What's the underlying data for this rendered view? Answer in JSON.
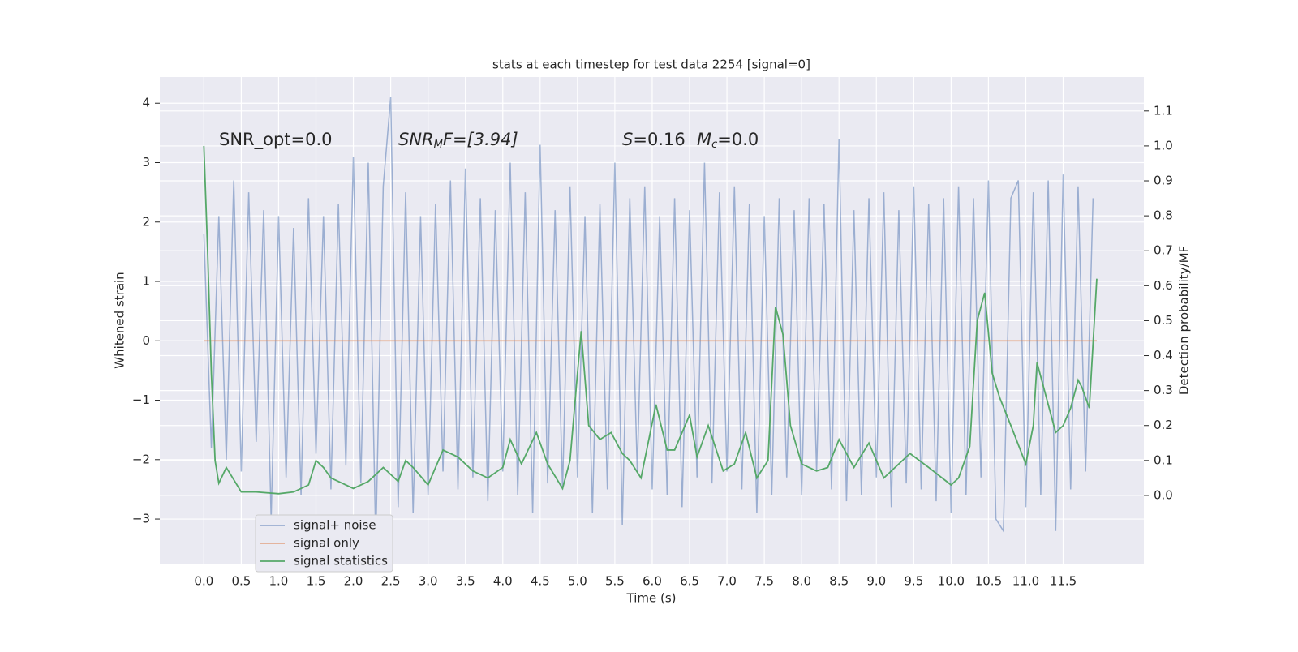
{
  "chart_data": {
    "type": "line",
    "title": "stats at each timestep for test data 2254 [signal=0]",
    "xlabel": "Time (s)",
    "ylabel": "Whitened strain",
    "y2label": "Detection probability/MF",
    "grid": true,
    "legend_loc": "lower left",
    "xlim": [
      -0.59,
      12.58
    ],
    "ylim": [
      -3.75,
      4.44
    ],
    "y2lim": [
      -0.195,
      1.197
    ],
    "xticks": [
      {
        "value": 0,
        "label": "0.0"
      },
      {
        "value": 0.5,
        "label": "0.5"
      },
      {
        "value": 1,
        "label": "1.0"
      },
      {
        "value": 1.5,
        "label": "1.5"
      },
      {
        "value": 2,
        "label": "2.0"
      },
      {
        "value": 2.5,
        "label": "2.5"
      },
      {
        "value": 3,
        "label": "3.0"
      },
      {
        "value": 3.5,
        "label": "3.5"
      },
      {
        "value": 4,
        "label": "4.0"
      },
      {
        "value": 4.5,
        "label": "4.5"
      },
      {
        "value": 5,
        "label": "5.0"
      },
      {
        "value": 5.5,
        "label": "5.5"
      },
      {
        "value": 6,
        "label": "6.0"
      },
      {
        "value": 6.5,
        "label": "6.5"
      },
      {
        "value": 7,
        "label": "7.0"
      },
      {
        "value": 7.5,
        "label": "7.5"
      },
      {
        "value": 8,
        "label": "8.0"
      },
      {
        "value": 8.5,
        "label": "8.5"
      },
      {
        "value": 9,
        "label": "9.0"
      },
      {
        "value": 9.5,
        "label": "9.5"
      },
      {
        "value": 10,
        "label": "10.0"
      },
      {
        "value": 10.5,
        "label": "10.5"
      },
      {
        "value": 11,
        "label": "11.0"
      },
      {
        "value": 11.5,
        "label": "11.5"
      }
    ],
    "yticks": [
      {
        "value": -3,
        "label": "−3"
      },
      {
        "value": -2,
        "label": "−2"
      },
      {
        "value": -1,
        "label": "−1"
      },
      0,
      1,
      2,
      3,
      4
    ],
    "y2ticks": [
      {
        "value": 0,
        "label": "0.0"
      },
      {
        "value": 0.1,
        "label": "0.1"
      },
      {
        "value": 0.2,
        "label": "0.2"
      },
      {
        "value": 0.3,
        "label": "0.3"
      },
      {
        "value": 0.4,
        "label": "0.4"
      },
      {
        "value": 0.5,
        "label": "0.5"
      },
      {
        "value": 0.6,
        "label": "0.6"
      },
      {
        "value": 0.7,
        "label": "0.7"
      },
      {
        "value": 0.8,
        "label": "0.8"
      },
      {
        "value": 0.9,
        "label": "0.9"
      },
      {
        "value": 1,
        "label": "1.0"
      },
      {
        "value": 1.1,
        "label": "1.1"
      }
    ],
    "annotations": [
      {
        "text": "SNR_opt=0.0"
      },
      {
        "base": "SNR",
        "sub": "M",
        "tail": "F=[3.94]"
      },
      {
        "base": "S",
        "tail": "=0.16"
      },
      {
        "base": "M",
        "sub": "c",
        "tail": "=0.0"
      }
    ],
    "series": [
      {
        "name": "signal+ noise",
        "color": "#4c72b0",
        "x": [
          0,
          0.1,
          0.2,
          0.3,
          0.4,
          0.5,
          0.6,
          0.7,
          0.8,
          0.9,
          1,
          1.1,
          1.2,
          1.3,
          1.4,
          1.5,
          1.6,
          1.7,
          1.8,
          1.9,
          2,
          2.1,
          2.2,
          2.3,
          2.4,
          2.5,
          2.6,
          2.7,
          2.8,
          2.9,
          3,
          3.1,
          3.2,
          3.3,
          3.4,
          3.5,
          3.6,
          3.7,
          3.8,
          3.9,
          4,
          4.1,
          4.2,
          4.3,
          4.4,
          4.5,
          4.6,
          4.7,
          4.8,
          4.9,
          5,
          5.1,
          5.2,
          5.3,
          5.4,
          5.5,
          5.6,
          5.7,
          5.8,
          5.9,
          6,
          6.1,
          6.2,
          6.3,
          6.4,
          6.5,
          6.6,
          6.7,
          6.8,
          6.9,
          7,
          7.1,
          7.2,
          7.3,
          7.4,
          7.5,
          7.6,
          7.7,
          7.8,
          7.9,
          8,
          8.1,
          8.2,
          8.3,
          8.4,
          8.5,
          8.6,
          8.7,
          8.8,
          8.9,
          9,
          9.1,
          9.2,
          9.3,
          9.4,
          9.5,
          9.6,
          9.7,
          9.8,
          9.9,
          10,
          10.1,
          10.2,
          10.3,
          10.4,
          10.5,
          10.6,
          10.7,
          10.8,
          10.9,
          11,
          11.1,
          11.2,
          11.3,
          11.4,
          11.5,
          11.6,
          11.7,
          11.8,
          11.9
        ],
        "values": [
          1.8,
          -1.8,
          2.1,
          -2.0,
          2.7,
          -2.2,
          2.5,
          -1.7,
          2.2,
          -3.0,
          2.1,
          -2.3,
          1.9,
          -2.6,
          2.4,
          -1.9,
          2.1,
          -2.5,
          2.3,
          -2.1,
          3.1,
          -2.4,
          3.0,
          -3.4,
          2.6,
          4.1,
          -2.8,
          2.5,
          -2.9,
          2.1,
          -2.6,
          2.3,
          -2.2,
          2.7,
          -2.5,
          2.9,
          -2.3,
          2.4,
          -2.7,
          2.2,
          -2.2,
          3.0,
          -2.6,
          2.5,
          -2.9,
          3.3,
          -2.4,
          2.2,
          -2.5,
          2.6,
          -2.3,
          2.1,
          -2.9,
          2.3,
          -2.5,
          3.0,
          -3.1,
          2.4,
          -2.2,
          2.6,
          -2.5,
          2.1,
          -2.6,
          2.4,
          -2.8,
          2.2,
          -2.3,
          3.0,
          -2.4,
          2.5,
          -2.2,
          2.6,
          -2.5,
          2.3,
          -2.9,
          2.1,
          -2.6,
          2.4,
          -2.3,
          2.2,
          -2.6,
          2.4,
          -2.2,
          2.3,
          -2.5,
          3.4,
          -2.7,
          2.2,
          -2.6,
          2.4,
          -2.3,
          2.5,
          -2.8,
          2.2,
          -2.4,
          2.6,
          -2.5,
          2.3,
          -2.7,
          2.4,
          -2.9,
          2.6,
          -2.6,
          2.4,
          -2.3,
          2.7,
          -3.0,
          -3.2,
          2.4,
          2.7,
          -2.8,
          2.5,
          -2.6,
          2.7,
          -3.2,
          2.8,
          -2.5,
          2.6,
          -2.2,
          2.4
        ]
      },
      {
        "name": "signal only",
        "color": "#dd8452",
        "x": [
          0,
          11.95
        ],
        "values": [
          0,
          0
        ]
      },
      {
        "name": "signal statistics",
        "color": "#55a868",
        "axis": "y2",
        "x": [
          0,
          0.05,
          0.1,
          0.15,
          0.2,
          0.3,
          0.5,
          0.7,
          1.0,
          1.2,
          1.4,
          1.5,
          1.6,
          1.7,
          1.8,
          2.0,
          2.2,
          2.4,
          2.6,
          2.7,
          2.8,
          3.0,
          3.2,
          3.4,
          3.6,
          3.8,
          4.0,
          4.1,
          4.25,
          4.45,
          4.6,
          4.8,
          4.9,
          5.0,
          5.05,
          5.15,
          5.3,
          5.45,
          5.6,
          5.7,
          5.85,
          6.05,
          6.2,
          6.3,
          6.5,
          6.6,
          6.75,
          6.95,
          7.1,
          7.25,
          7.4,
          7.55,
          7.65,
          7.75,
          7.85,
          8.0,
          8.2,
          8.35,
          8.5,
          8.7,
          8.9,
          9.1,
          9.2,
          9.45,
          9.7,
          10.0,
          10.1,
          10.25,
          10.35,
          10.45,
          10.55,
          10.65,
          10.8,
          11.0,
          11.1,
          11.15,
          11.25,
          11.4,
          11.5,
          11.6,
          11.7,
          11.75,
          11.85,
          11.95
        ],
        "values": [
          1.0,
          0.7,
          0.35,
          0.1,
          0.035,
          0.08,
          0.01,
          0.01,
          0.005,
          0.01,
          0.03,
          0.1,
          0.08,
          0.05,
          0.04,
          0.02,
          0.04,
          0.08,
          0.04,
          0.1,
          0.08,
          0.03,
          0.13,
          0.11,
          0.07,
          0.05,
          0.08,
          0.16,
          0.09,
          0.18,
          0.09,
          0.02,
          0.1,
          0.35,
          0.47,
          0.2,
          0.16,
          0.18,
          0.12,
          0.1,
          0.05,
          0.26,
          0.13,
          0.13,
          0.23,
          0.11,
          0.2,
          0.07,
          0.09,
          0.18,
          0.05,
          0.1,
          0.54,
          0.46,
          0.2,
          0.09,
          0.07,
          0.08,
          0.16,
          0.08,
          0.15,
          0.05,
          0.07,
          0.12,
          0.08,
          0.03,
          0.05,
          0.14,
          0.5,
          0.58,
          0.35,
          0.28,
          0.2,
          0.09,
          0.2,
          0.38,
          0.3,
          0.18,
          0.2,
          0.25,
          0.33,
          0.31,
          0.25,
          0.62
        ]
      }
    ]
  }
}
